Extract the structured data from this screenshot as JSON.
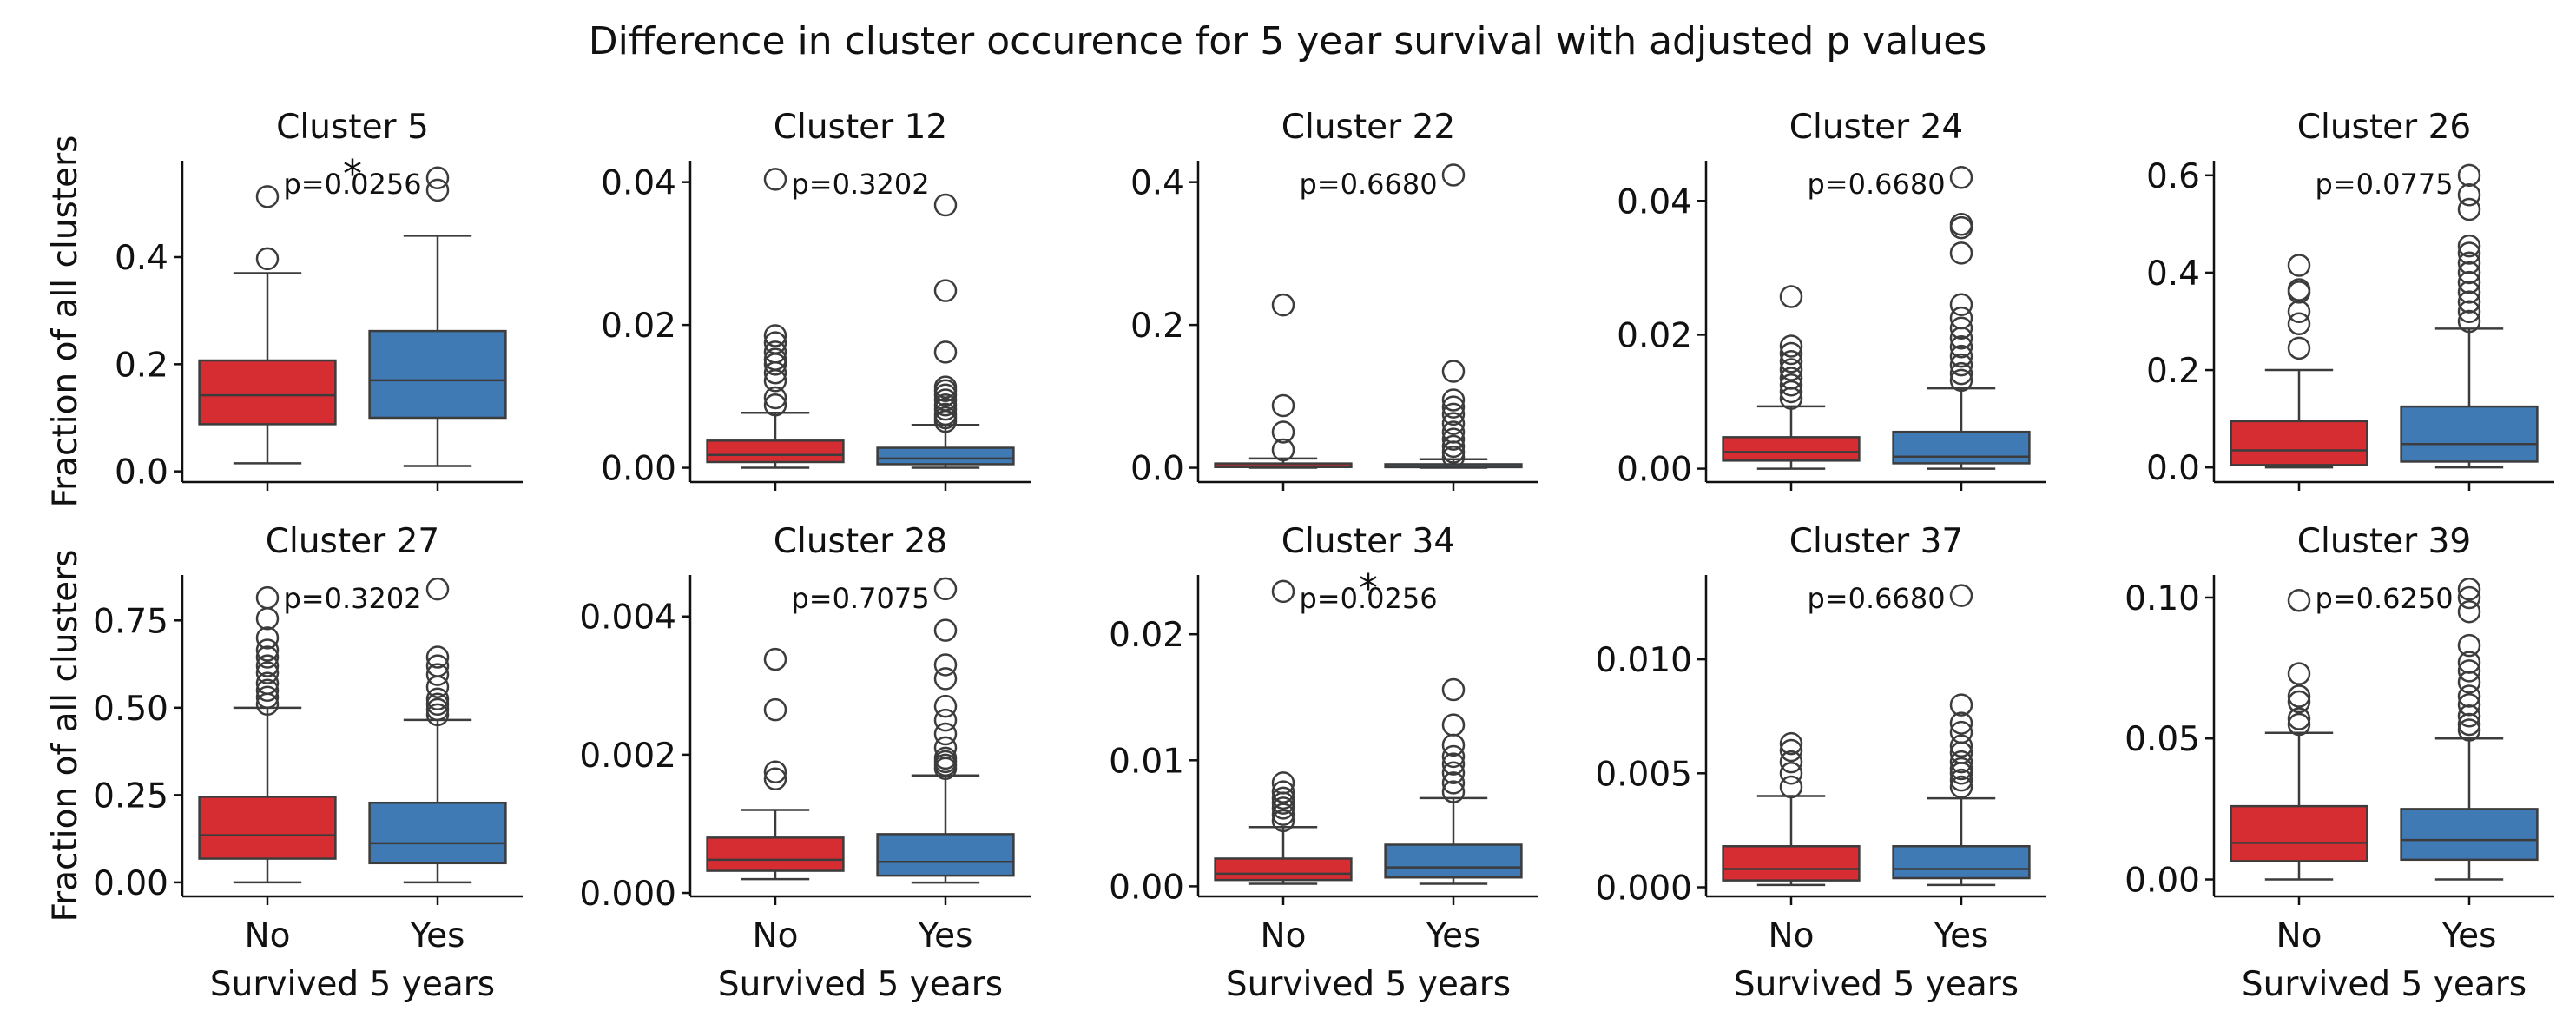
{
  "suptitle": "Difference in cluster occurence for 5 year survival with adjusted p values",
  "colors": {
    "No": "#d62d32",
    "Yes": "#3f7ab5",
    "line": "#3c3c3c",
    "axis": "#111111"
  },
  "chart_data": [
    {
      "type": "box",
      "title": "Cluster 5",
      "categories": [
        "No",
        "Yes"
      ],
      "ylabel": "Fraction of all clusters",
      "xlabel": "",
      "ylim": [
        -0.02,
        0.58
      ],
      "ticks": [
        0.0,
        0.2,
        0.4
      ],
      "tick_labels": [
        "0.0",
        "0.2",
        "0.4"
      ],
      "annotation": "p=0.0256",
      "star": "*",
      "boxes": [
        {
          "category": "No",
          "whislo": 0.015,
          "q1": 0.088,
          "med": 0.142,
          "q3": 0.207,
          "whishi": 0.37,
          "fliers": [
            0.397,
            0.513
          ]
        },
        {
          "category": "Yes",
          "whislo": 0.01,
          "q1": 0.1,
          "med": 0.17,
          "q3": 0.262,
          "whishi": 0.44,
          "fliers": [
            0.525,
            0.548
          ]
        }
      ]
    },
    {
      "type": "box",
      "title": "Cluster 12",
      "categories": [
        "No",
        "Yes"
      ],
      "ylabel": "",
      "xlabel": "",
      "ylim": [
        -0.002,
        0.043
      ],
      "ticks": [
        0.0,
        0.02,
        0.04
      ],
      "tick_labels": [
        "0.00",
        "0.02",
        "0.04"
      ],
      "annotation": "p=0.3202",
      "star": "",
      "boxes": [
        {
          "category": "No",
          "whislo": 0.0,
          "q1": 0.0008,
          "med": 0.0018,
          "q3": 0.0038,
          "whishi": 0.0077,
          "fliers": [
            0.0088,
            0.0098,
            0.0122,
            0.0133,
            0.0145,
            0.0152,
            0.0162,
            0.0175,
            0.0185,
            0.0404
          ]
        },
        {
          "category": "Yes",
          "whislo": 0.0,
          "q1": 0.0005,
          "med": 0.0013,
          "q3": 0.0028,
          "whishi": 0.006,
          "fliers": [
            0.0065,
            0.007,
            0.0075,
            0.0082,
            0.0088,
            0.0095,
            0.0102,
            0.0108,
            0.0113,
            0.0162,
            0.0248,
            0.0368
          ]
        }
      ]
    },
    {
      "type": "box",
      "title": "Cluster 22",
      "categories": [
        "No",
        "Yes"
      ],
      "ylabel": "",
      "xlabel": "",
      "ylim": [
        -0.02,
        0.43
      ],
      "ticks": [
        0.0,
        0.2,
        0.4
      ],
      "tick_labels": [
        "0.0",
        "0.2",
        "0.4"
      ],
      "annotation": "p=0.6680",
      "star": "",
      "boxes": [
        {
          "category": "No",
          "whislo": 0.0,
          "q1": 0.001,
          "med": 0.002,
          "q3": 0.006,
          "whishi": 0.013,
          "fliers": [
            0.025,
            0.05,
            0.087,
            0.228
          ]
        },
        {
          "category": "Yes",
          "whislo": 0.0,
          "q1": 0.0008,
          "med": 0.0018,
          "q3": 0.005,
          "whishi": 0.012,
          "fliers": [
            0.015,
            0.022,
            0.03,
            0.04,
            0.05,
            0.062,
            0.075,
            0.085,
            0.095,
            0.135,
            0.41
          ]
        }
      ]
    },
    {
      "type": "box",
      "title": "Cluster 24",
      "categories": [
        "No",
        "Yes"
      ],
      "ylabel": "",
      "xlabel": "",
      "ylim": [
        -0.002,
        0.046
      ],
      "ticks": [
        0.0,
        0.02,
        0.04
      ],
      "tick_labels": [
        "0.00",
        "0.02",
        "0.04"
      ],
      "annotation": "p=0.6680",
      "star": "",
      "boxes": [
        {
          "category": "No",
          "whislo": 0.0,
          "q1": 0.0012,
          "med": 0.0025,
          "q3": 0.0047,
          "whishi": 0.0093,
          "fliers": [
            0.0105,
            0.0115,
            0.0125,
            0.0135,
            0.0148,
            0.016,
            0.0172,
            0.0183,
            0.0257
          ]
        },
        {
          "category": "Yes",
          "whislo": 0.0,
          "q1": 0.0008,
          "med": 0.0018,
          "q3": 0.0055,
          "whishi": 0.012,
          "fliers": [
            0.0132,
            0.0142,
            0.0155,
            0.0168,
            0.0182,
            0.0195,
            0.021,
            0.0225,
            0.0245,
            0.0322,
            0.036,
            0.0365,
            0.0435
          ]
        }
      ]
    },
    {
      "type": "box",
      "title": "Cluster 26",
      "categories": [
        "No",
        "Yes"
      ],
      "ylabel": "",
      "xlabel": "",
      "ylim": [
        -0.03,
        0.63
      ],
      "ticks": [
        0.0,
        0.2,
        0.4,
        0.6
      ],
      "tick_labels": [
        "0.0",
        "0.2",
        "0.4",
        "0.6"
      ],
      "annotation": "p=0.0775",
      "star": "",
      "boxes": [
        {
          "category": "No",
          "whislo": 0.0,
          "q1": 0.005,
          "med": 0.035,
          "q3": 0.095,
          "whishi": 0.2,
          "fliers": [
            0.245,
            0.295,
            0.32,
            0.36,
            0.365,
            0.415
          ]
        },
        {
          "category": "Yes",
          "whislo": 0.0,
          "q1": 0.012,
          "med": 0.048,
          "q3": 0.125,
          "whishi": 0.285,
          "fliers": [
            0.3,
            0.32,
            0.34,
            0.36,
            0.38,
            0.4,
            0.42,
            0.44,
            0.455,
            0.53,
            0.56,
            0.6
          ]
        }
      ]
    },
    {
      "type": "box",
      "title": "Cluster 27",
      "categories": [
        "No",
        "Yes"
      ],
      "ylabel": "Fraction of all clusters",
      "xlabel": "Survived 5 years",
      "ylim": [
        -0.04,
        0.88
      ],
      "ticks": [
        0.0,
        0.25,
        0.5,
        0.75
      ],
      "tick_labels": [
        "0.00",
        "0.25",
        "0.50",
        "0.75"
      ],
      "annotation": "p=0.3202",
      "star": "",
      "boxes": [
        {
          "category": "No",
          "whislo": 0.0,
          "q1": 0.068,
          "med": 0.135,
          "q3": 0.245,
          "whishi": 0.5,
          "fliers": [
            0.51,
            0.53,
            0.55,
            0.57,
            0.6,
            0.62,
            0.645,
            0.665,
            0.7,
            0.755,
            0.815
          ]
        },
        {
          "category": "Yes",
          "whislo": 0.0,
          "q1": 0.055,
          "med": 0.112,
          "q3": 0.228,
          "whishi": 0.465,
          "fliers": [
            0.48,
            0.495,
            0.51,
            0.525,
            0.56,
            0.595,
            0.62,
            0.645,
            0.84
          ]
        }
      ]
    },
    {
      "type": "box",
      "title": "Cluster 28",
      "categories": [
        "No",
        "Yes"
      ],
      "ylabel": "",
      "xlabel": "Survived 5 years",
      "ylim": [
        -5e-05,
        0.0046
      ],
      "ticks": [
        0.0,
        0.002,
        0.004
      ],
      "tick_labels": [
        "0.000",
        "0.002",
        "0.004"
      ],
      "annotation": "p=0.7075",
      "star": "",
      "boxes": [
        {
          "category": "No",
          "whislo": 0.0002,
          "q1": 0.00032,
          "med": 0.00048,
          "q3": 0.0008,
          "whishi": 0.0012,
          "fliers": [
            0.00165,
            0.00175,
            0.00265,
            0.00338
          ]
        },
        {
          "category": "Yes",
          "whislo": 0.00015,
          "q1": 0.00025,
          "med": 0.00045,
          "q3": 0.00085,
          "whishi": 0.0017,
          "fliers": [
            0.0018,
            0.00185,
            0.0019,
            0.00195,
            0.0021,
            0.0023,
            0.0025,
            0.0027,
            0.0031,
            0.0033,
            0.0038,
            0.0044
          ]
        }
      ]
    },
    {
      "type": "box",
      "title": "Cluster 34",
      "categories": [
        "No",
        "Yes"
      ],
      "ylabel": "",
      "xlabel": "Survived 5 years",
      "ylim": [
        -0.0008,
        0.0247
      ],
      "ticks": [
        0.0,
        0.01,
        0.02
      ],
      "tick_labels": [
        "0.00",
        "0.01",
        "0.02"
      ],
      "annotation": "p=0.0256",
      "star": "*",
      "boxes": [
        {
          "category": "No",
          "whislo": 0.0002,
          "q1": 0.0005,
          "med": 0.001,
          "q3": 0.0022,
          "whishi": 0.0047,
          "fliers": [
            0.0052,
            0.0057,
            0.0062,
            0.0066,
            0.007,
            0.0075,
            0.0082,
            0.0234
          ]
        },
        {
          "category": "Yes",
          "whislo": 0.0002,
          "q1": 0.0007,
          "med": 0.0015,
          "q3": 0.0033,
          "whishi": 0.007,
          "fliers": [
            0.0075,
            0.0082,
            0.009,
            0.0097,
            0.0103,
            0.0112,
            0.0128,
            0.0156
          ]
        }
      ]
    },
    {
      "type": "box",
      "title": "Cluster 37",
      "categories": [
        "No",
        "Yes"
      ],
      "ylabel": "",
      "xlabel": "Survived 5 years",
      "ylim": [
        -0.0004,
        0.0137
      ],
      "ticks": [
        0.0,
        0.005,
        0.01
      ],
      "tick_labels": [
        "0.000",
        "0.005",
        "0.010"
      ],
      "annotation": "p=0.6680",
      "star": "",
      "boxes": [
        {
          "category": "No",
          "whislo": 0.0001,
          "q1": 0.0003,
          "med": 0.0008,
          "q3": 0.0018,
          "whishi": 0.004,
          "fliers": [
            0.0044,
            0.005,
            0.0055,
            0.006,
            0.0063
          ]
        },
        {
          "category": "Yes",
          "whislo": 0.0001,
          "q1": 0.0004,
          "med": 0.0008,
          "q3": 0.0018,
          "whishi": 0.0039,
          "fliers": [
            0.0044,
            0.0047,
            0.005,
            0.0052,
            0.0055,
            0.0059,
            0.0062,
            0.0068,
            0.0072,
            0.008,
            0.0128
          ]
        }
      ]
    },
    {
      "type": "box",
      "title": "Cluster 39",
      "categories": [
        "No",
        "Yes"
      ],
      "ylabel": "",
      "xlabel": "Survived 5 years",
      "ylim": [
        -0.006,
        0.108
      ],
      "ticks": [
        0.0,
        0.05,
        0.1
      ],
      "tick_labels": [
        "0.00",
        "0.05",
        "0.10"
      ],
      "annotation": "p=0.6250",
      "star": "",
      "boxes": [
        {
          "category": "No",
          "whislo": 0.0,
          "q1": 0.0065,
          "med": 0.013,
          "q3": 0.026,
          "whishi": 0.052,
          "fliers": [
            0.055,
            0.057,
            0.063,
            0.065,
            0.073,
            0.099
          ]
        },
        {
          "category": "Yes",
          "whislo": 0.0,
          "q1": 0.007,
          "med": 0.014,
          "q3": 0.025,
          "whishi": 0.05,
          "fliers": [
            0.053,
            0.055,
            0.058,
            0.062,
            0.065,
            0.07,
            0.074,
            0.077,
            0.083,
            0.095,
            0.1,
            0.103
          ]
        }
      ]
    }
  ]
}
